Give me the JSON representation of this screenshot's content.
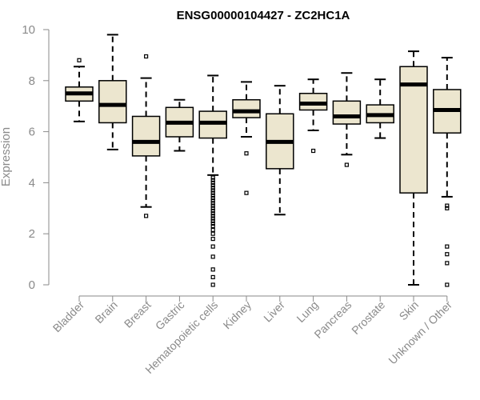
{
  "chart_data": {
    "type": "boxplot",
    "title": "ENSG00000104427 - ZC2HC1A",
    "xlabel": "",
    "ylabel": "Expression",
    "ylim": [
      0,
      10
    ],
    "yticks": [
      0,
      2,
      4,
      6,
      8,
      10
    ],
    "box_fill": "#ece6cf",
    "categories": [
      "Bladder",
      "Brain",
      "Breast",
      "Gastric",
      "Hematopoietic cells",
      "Kidney",
      "Liver",
      "Lung",
      "Pancreas",
      "Prostate",
      "Skin",
      "Unknown / Other"
    ],
    "boxes": [
      {
        "name": "Bladder",
        "min": 6.4,
        "q1": 7.2,
        "median": 7.5,
        "q3": 7.75,
        "max": 8.55,
        "outliers": [
          8.8
        ]
      },
      {
        "name": "Brain",
        "min": 5.3,
        "q1": 6.35,
        "median": 7.05,
        "q3": 8.0,
        "max": 9.8,
        "outliers": []
      },
      {
        "name": "Breast",
        "min": 3.05,
        "q1": 5.05,
        "median": 5.6,
        "q3": 6.6,
        "max": 8.1,
        "outliers": [
          8.95,
          2.7
        ]
      },
      {
        "name": "Gastric",
        "min": 5.25,
        "q1": 5.8,
        "median": 6.35,
        "q3": 6.95,
        "max": 7.25,
        "outliers": []
      },
      {
        "name": "Hematopoietic cells",
        "min": 4.3,
        "q1": 5.75,
        "median": 6.35,
        "q3": 6.8,
        "max": 8.2,
        "outliers": [
          4.2,
          4.1,
          4.0,
          3.9,
          3.8,
          3.7,
          3.6,
          3.5,
          3.4,
          3.3,
          3.2,
          3.1,
          3.0,
          2.9,
          2.8,
          2.7,
          2.6,
          2.5,
          2.4,
          2.3,
          2.15,
          2.0,
          1.8,
          1.5,
          1.1,
          0.6,
          0.3,
          0.0
        ]
      },
      {
        "name": "Kidney",
        "min": 5.8,
        "q1": 6.55,
        "median": 6.8,
        "q3": 7.25,
        "max": 7.95,
        "outliers": [
          5.15,
          3.6
        ]
      },
      {
        "name": "Liver",
        "min": 2.75,
        "q1": 4.55,
        "median": 5.6,
        "q3": 6.7,
        "max": 7.8,
        "outliers": []
      },
      {
        "name": "Lung",
        "min": 6.05,
        "q1": 6.85,
        "median": 7.1,
        "q3": 7.5,
        "max": 8.05,
        "outliers": [
          5.25
        ]
      },
      {
        "name": "Pancreas",
        "min": 5.1,
        "q1": 6.3,
        "median": 6.6,
        "q3": 7.2,
        "max": 8.3,
        "outliers": [
          4.7
        ]
      },
      {
        "name": "Prostate",
        "min": 5.75,
        "q1": 6.35,
        "median": 6.65,
        "q3": 7.05,
        "max": 8.05,
        "outliers": []
      },
      {
        "name": "Skin",
        "min": 0.0,
        "q1": 3.6,
        "median": 7.85,
        "q3": 8.55,
        "max": 9.15,
        "outliers": []
      },
      {
        "name": "Unknown / Other",
        "min": 3.45,
        "q1": 5.95,
        "median": 6.85,
        "q3": 7.65,
        "max": 8.9,
        "outliers": [
          3.1,
          3.0,
          1.5,
          1.2,
          0.85,
          0.0
        ]
      }
    ]
  }
}
